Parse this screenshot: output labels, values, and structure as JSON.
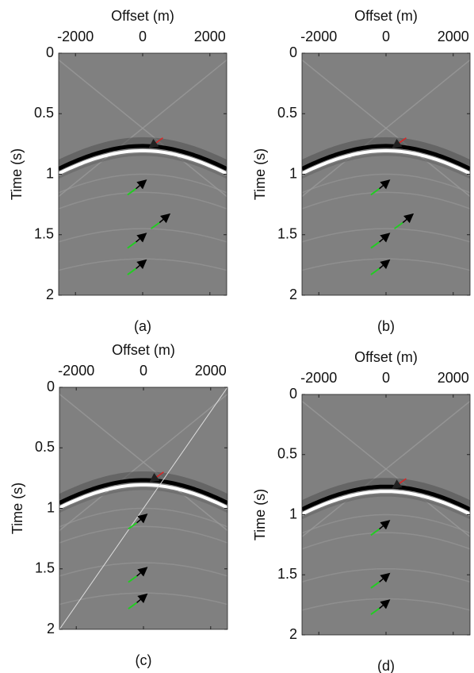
{
  "chart_data": [
    {
      "type": "image",
      "xlabel": "Offset (m)",
      "ylabel": "Time (s)",
      "caption": "(a)",
      "xlim": [
        -2500,
        2500
      ],
      "ylim": [
        0,
        2
      ],
      "xticks": [
        -2000,
        0,
        2000
      ],
      "yticks": [
        0,
        0.5,
        1,
        1.5,
        2
      ]
    },
    {
      "type": "image",
      "xlabel": "Offset (m)",
      "ylabel": "Time (s)",
      "caption": "(b)",
      "xlim": [
        -2500,
        2500
      ],
      "ylim": [
        0,
        2
      ],
      "xticks": [
        -2000,
        0,
        2000
      ],
      "yticks": [
        0,
        0.5,
        1,
        1.5,
        2
      ]
    },
    {
      "type": "image",
      "xlabel": "Offset (m)",
      "ylabel": "Time (s)",
      "caption": "(c)",
      "xlim": [
        -2500,
        2500
      ],
      "ylim": [
        0,
        2
      ],
      "xticks": [
        -2000,
        0,
        2000
      ],
      "yticks": [
        0,
        0.5,
        1,
        1.5,
        2
      ]
    },
    {
      "type": "image",
      "xlabel": "Offset (m)",
      "ylabel": "Time (s)",
      "caption": "(d)",
      "xlim": [
        -2500,
        2500
      ],
      "ylim": [
        0,
        2
      ],
      "xticks": [
        -2000,
        0,
        2000
      ],
      "yticks": [
        0,
        0.5,
        1,
        1.5,
        2
      ]
    }
  ]
}
